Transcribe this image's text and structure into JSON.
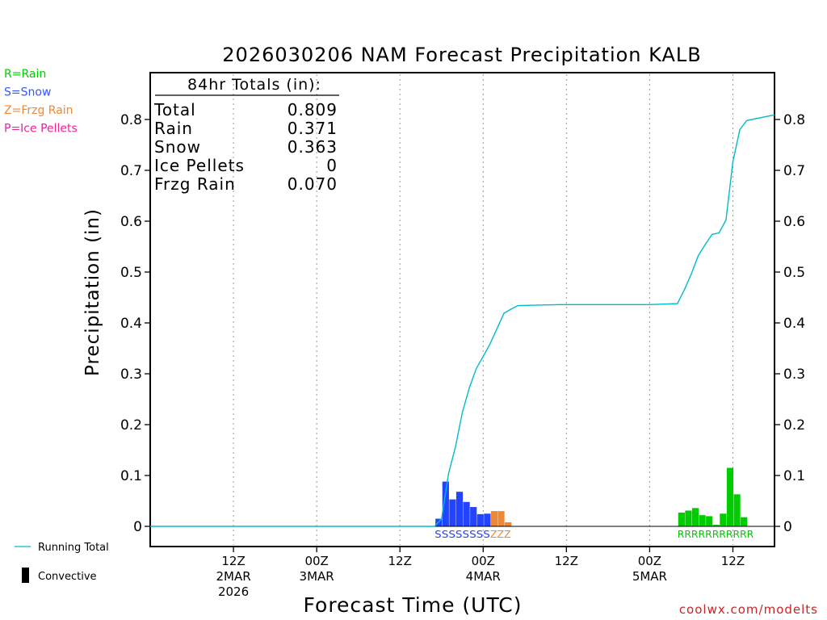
{
  "chart_data": {
    "type": "bar",
    "title": "2026030206 NAM Forecast Precipitation KALB",
    "xlabel": "Forecast Time (UTC)",
    "ylabel": "Precipitation (in)",
    "ylim": [
      0,
      0.88
    ],
    "yticks": [
      0,
      0.1,
      0.2,
      0.3,
      0.4,
      0.5,
      0.6,
      0.7,
      0.8
    ],
    "ytick_labels": [
      "0",
      "0.1",
      "0.2",
      "0.3",
      "0.4",
      "0.5",
      "0.6",
      "0.7",
      "0.8"
    ],
    "xlim_hours": [
      -6,
      84
    ],
    "xticks": [
      {
        "hour": 6,
        "line1": "12Z",
        "line2": "2MAR",
        "line3": "2026"
      },
      {
        "hour": 18,
        "line1": "00Z",
        "line2": "3MAR",
        "line3": ""
      },
      {
        "hour": 30,
        "line1": "12Z",
        "line2": "",
        "line3": ""
      },
      {
        "hour": 42,
        "line1": "00Z",
        "line2": "4MAR",
        "line3": ""
      },
      {
        "hour": 54,
        "line1": "12Z",
        "line2": "",
        "line3": ""
      },
      {
        "hour": 66,
        "line1": "00Z",
        "line2": "5MAR",
        "line3": ""
      },
      {
        "hour": 78,
        "line1": "12Z",
        "line2": "",
        "line3": ""
      }
    ],
    "legend_types": [
      {
        "label": "R=Rain",
        "color": "#00cc00"
      },
      {
        "label": "S=Snow",
        "color": "#3355ff"
      },
      {
        "label": "Z=Frzg Rain",
        "color": "#ee8833"
      },
      {
        "label": "P=Ice Pellets",
        "color": "#ee2299"
      }
    ],
    "legend_series": [
      {
        "label": "Running Total",
        "color": "#00bbcc",
        "kind": "line"
      },
      {
        "label": "Convective",
        "color": "#000000",
        "kind": "bar"
      }
    ],
    "totals_box": {
      "header": "84hr Totals (in):",
      "rows": [
        {
          "label": "Total",
          "value": "0.809"
        },
        {
          "label": "Rain",
          "value": "0.371"
        },
        {
          "label": "Snow",
          "value": "0.363"
        },
        {
          "label": "Ice Pellets",
          "value": "0"
        },
        {
          "label": "Frzg Rain",
          "value": "0.070"
        }
      ]
    },
    "bar_colors": {
      "S": "#2244ff",
      "Z": "#ee8833",
      "R": "#00cc00",
      "P": "#ee2299"
    },
    "bars": [
      {
        "hour": 36,
        "value": 0.015,
        "type": "S"
      },
      {
        "hour": 37,
        "value": 0.088,
        "type": "S"
      },
      {
        "hour": 38,
        "value": 0.053,
        "type": "S"
      },
      {
        "hour": 39,
        "value": 0.068,
        "type": "S"
      },
      {
        "hour": 40,
        "value": 0.048,
        "type": "S"
      },
      {
        "hour": 41,
        "value": 0.038,
        "type": "S"
      },
      {
        "hour": 42,
        "value": 0.024,
        "type": "S"
      },
      {
        "hour": 43,
        "value": 0.025,
        "type": "S"
      },
      {
        "hour": 44,
        "value": 0.03,
        "type": "Z"
      },
      {
        "hour": 45,
        "value": 0.03,
        "type": "Z"
      },
      {
        "hour": 46,
        "value": 0.008,
        "type": "Z"
      },
      {
        "hour": 71,
        "value": 0.027,
        "type": "R"
      },
      {
        "hour": 72,
        "value": 0.031,
        "type": "R"
      },
      {
        "hour": 73,
        "value": 0.036,
        "type": "R"
      },
      {
        "hour": 74,
        "value": 0.022,
        "type": "R"
      },
      {
        "hour": 75,
        "value": 0.02,
        "type": "R"
      },
      {
        "hour": 76,
        "value": 0.003,
        "type": "R"
      },
      {
        "hour": 77,
        "value": 0.025,
        "type": "R"
      },
      {
        "hour": 78,
        "value": 0.115,
        "type": "R"
      },
      {
        "hour": 79,
        "value": 0.063,
        "type": "R"
      },
      {
        "hour": 80,
        "value": 0.018,
        "type": "R"
      }
    ],
    "type_label_rows": [
      {
        "hour_start": 36,
        "hour_end": 43,
        "text": "SSSSSSSS",
        "type": "S"
      },
      {
        "hour_start": 44,
        "hour_end": 46,
        "text": "ZZZ",
        "type": "Z"
      },
      {
        "hour_start": 71,
        "hour_end": 81,
        "text": "RRRRRRRRRRR",
        "type": "R"
      }
    ],
    "series": [
      {
        "name": "Running Total",
        "color": "#00bbcc",
        "points": [
          [
            -6,
            0
          ],
          [
            35,
            0
          ],
          [
            36,
            0.015
          ],
          [
            37,
            0.103
          ],
          [
            38,
            0.156
          ],
          [
            39,
            0.224
          ],
          [
            40,
            0.272
          ],
          [
            41,
            0.31
          ],
          [
            42,
            0.334
          ],
          [
            43,
            0.359
          ],
          [
            44,
            0.389
          ],
          [
            45,
            0.419
          ],
          [
            46,
            0.427
          ],
          [
            47,
            0.434
          ],
          [
            53,
            0.436
          ],
          [
            66,
            0.436
          ],
          [
            70,
            0.438
          ],
          [
            71,
            0.465
          ],
          [
            72,
            0.496
          ],
          [
            73,
            0.532
          ],
          [
            74,
            0.554
          ],
          [
            75,
            0.574
          ],
          [
            76,
            0.577
          ],
          [
            77,
            0.602
          ],
          [
            78,
            0.717
          ],
          [
            79,
            0.78
          ],
          [
            80,
            0.798
          ],
          [
            84,
            0.809
          ]
        ]
      }
    ],
    "credit": "coolwx.com/modelts"
  }
}
